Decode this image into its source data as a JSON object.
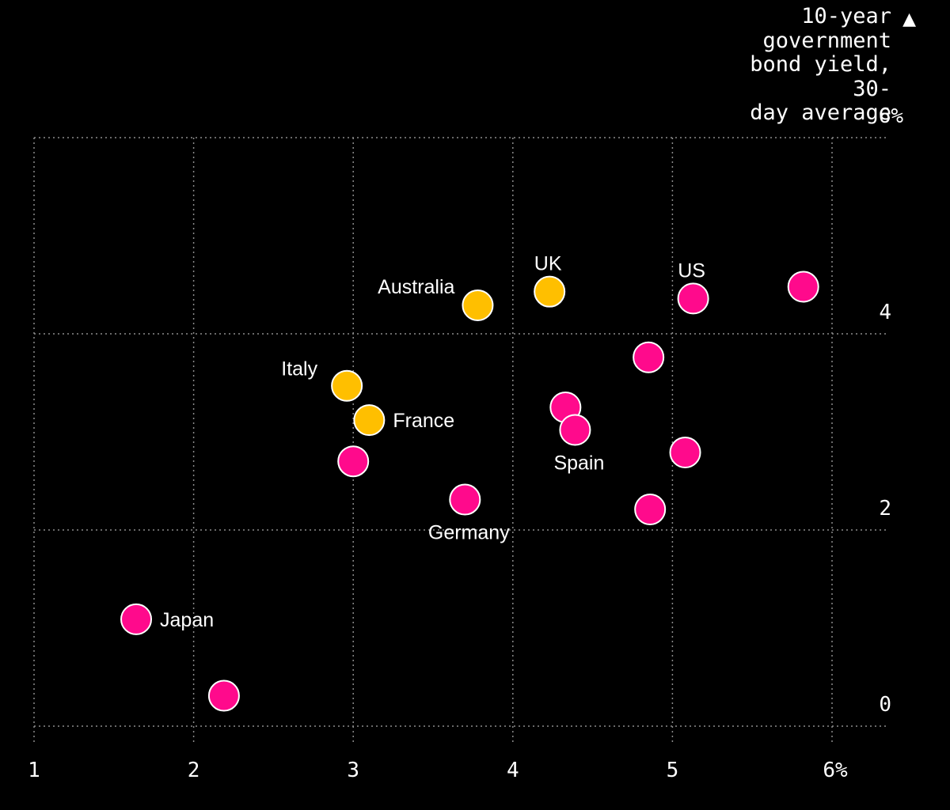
{
  "chart_data": {
    "type": "scatter",
    "ylabel_lines": [
      "10-year",
      "government",
      "bond yield, 30-",
      "day average"
    ],
    "ylabel_arrow": "▲",
    "xlim": [
      1,
      6.2
    ],
    "ylim": [
      0,
      6
    ],
    "x_ticks": [
      {
        "value": 1,
        "label": "1"
      },
      {
        "value": 2,
        "label": "2"
      },
      {
        "value": 3,
        "label": "3"
      },
      {
        "value": 4,
        "label": "4"
      },
      {
        "value": 5,
        "label": "5"
      },
      {
        "value": 6,
        "label": "6%"
      }
    ],
    "y_ticks": [
      {
        "value": 0,
        "label": "0"
      },
      {
        "value": 2,
        "label": "2"
      },
      {
        "value": 4,
        "label": "4"
      },
      {
        "value": 6,
        "label": "6%"
      }
    ],
    "grid": true,
    "colors": {
      "pink": "#ff0a8c",
      "yellow": "#ffbf00",
      "grid": "#8c8c8c",
      "background": "#000000",
      "outline": "#ffffff"
    },
    "points": [
      {
        "x": 3.78,
        "y": 4.29,
        "group": "yellow",
        "label": "Australia",
        "anchor": "left"
      },
      {
        "x": 4.23,
        "y": 4.43,
        "group": "yellow",
        "label": "UK",
        "anchor": "above"
      },
      {
        "x": 2.96,
        "y": 3.47,
        "group": "yellow",
        "label": "Italy",
        "anchor": "upper-left"
      },
      {
        "x": 3.1,
        "y": 3.12,
        "group": "yellow",
        "label": "France",
        "anchor": "right"
      },
      {
        "x": 5.13,
        "y": 4.36,
        "group": "pink",
        "label": "US",
        "anchor": "above"
      },
      {
        "x": 5.82,
        "y": 4.48,
        "group": "pink",
        "label": ""
      },
      {
        "x": 4.85,
        "y": 3.76,
        "group": "pink",
        "label": ""
      },
      {
        "x": 4.33,
        "y": 3.25,
        "group": "pink",
        "label": ""
      },
      {
        "x": 4.39,
        "y": 3.02,
        "group": "pink",
        "label": "Spain",
        "anchor": "below"
      },
      {
        "x": 3.0,
        "y": 2.7,
        "group": "pink",
        "label": ""
      },
      {
        "x": 5.08,
        "y": 2.79,
        "group": "pink",
        "label": ""
      },
      {
        "x": 3.7,
        "y": 2.31,
        "group": "pink",
        "label": "Germany",
        "anchor": "below"
      },
      {
        "x": 4.86,
        "y": 2.21,
        "group": "pink",
        "label": ""
      },
      {
        "x": 1.64,
        "y": 1.09,
        "group": "pink",
        "label": "Japan",
        "anchor": "right"
      },
      {
        "x": 2.19,
        "y": 0.31,
        "group": "pink",
        "label": ""
      }
    ]
  }
}
